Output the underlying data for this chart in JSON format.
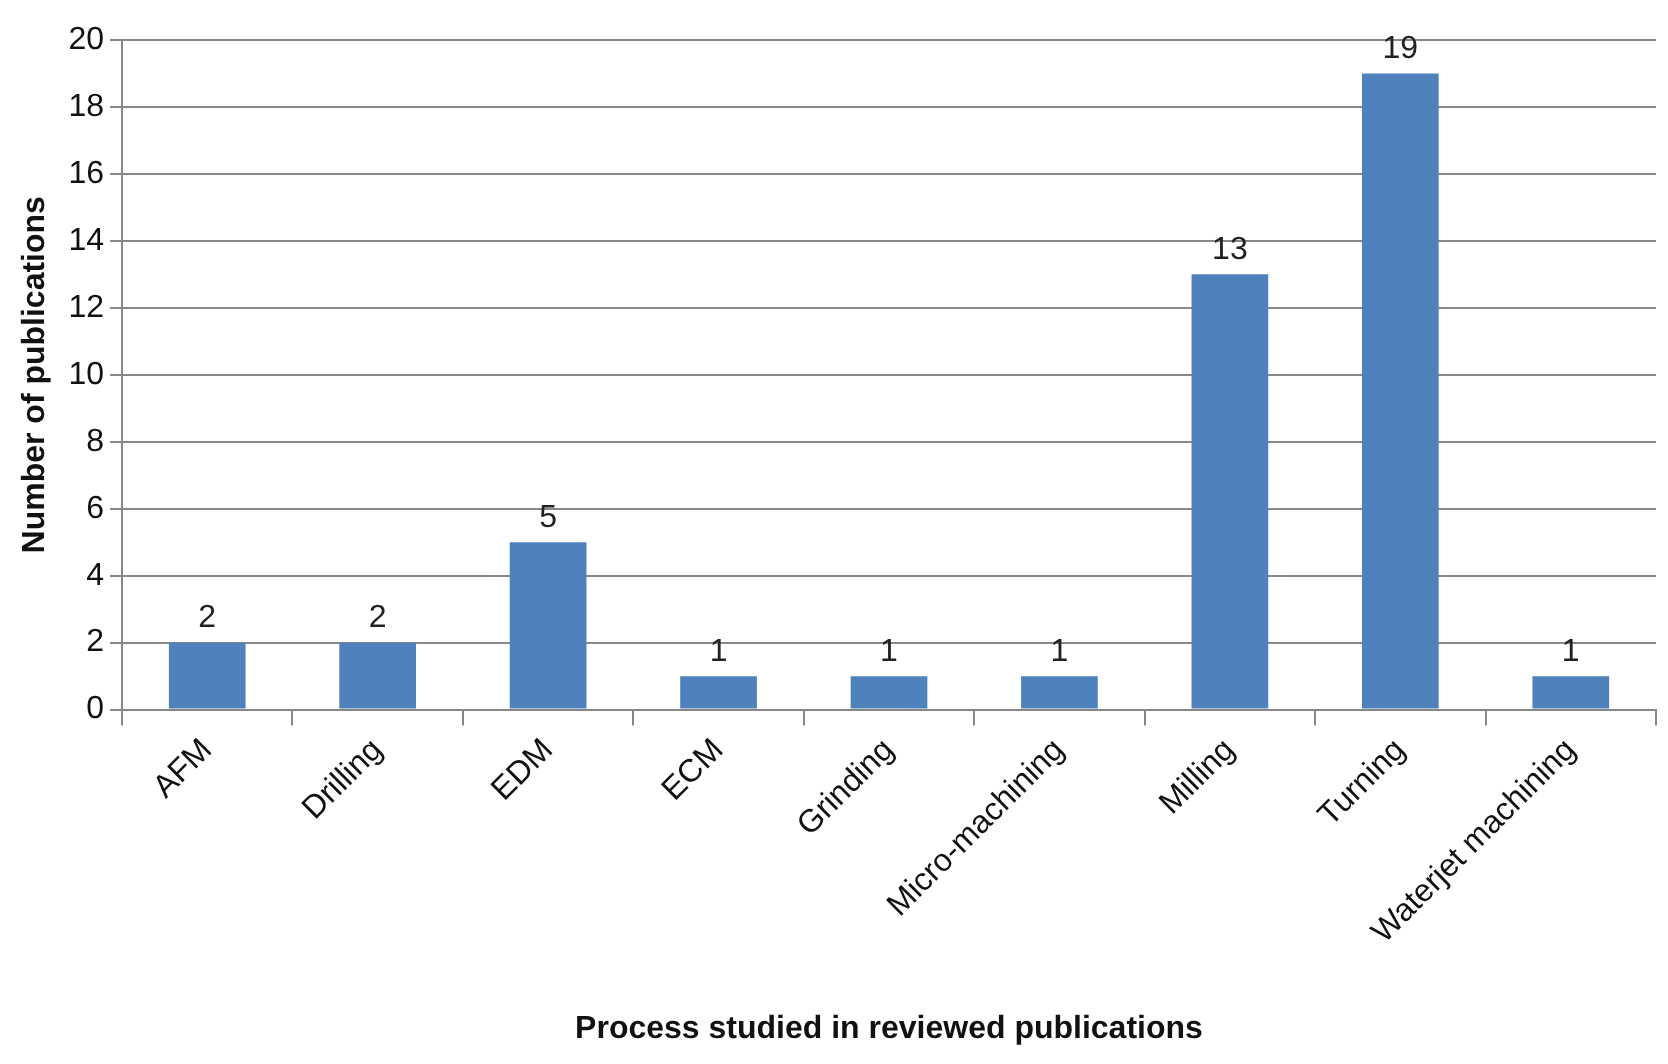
{
  "chart_data": {
    "type": "bar",
    "xlabel": "Process studied in reviewed publications",
    "ylabel": "Number of publications",
    "categories": [
      "AFM",
      "Drilling",
      "EDM",
      "ECM",
      "Grinding",
      "Micro-machining",
      "Milling",
      "Turning",
      "Waterjet machining"
    ],
    "values": [
      2,
      2,
      5,
      1,
      1,
      1,
      13,
      19,
      1
    ],
    "color": "#4f81bd",
    "ylim": [
      0,
      20
    ],
    "yticks": [
      0,
      2,
      4,
      6,
      8,
      10,
      12,
      14,
      16,
      18,
      20
    ],
    "grid": "y",
    "data_labels": true,
    "legend": false
  }
}
